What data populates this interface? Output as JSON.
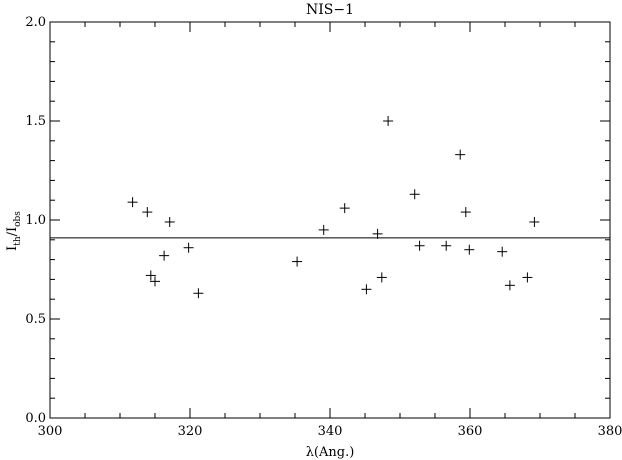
{
  "chart_data": {
    "type": "scatter",
    "title": "NIS−1",
    "xlabel": "λ(Ang.)",
    "ylabel_main": "I",
    "ylabel_sub1": "th",
    "ylabel_mid": "/I",
    "ylabel_sub2": "obs",
    "xlim": [
      300,
      380
    ],
    "ylim": [
      0.0,
      2.0
    ],
    "xticks": [
      300,
      320,
      340,
      360,
      380
    ],
    "xtick_labels": [
      "300",
      "320",
      "340",
      "360",
      "380"
    ],
    "yticks": [
      0.0,
      0.5,
      1.0,
      1.5,
      2.0
    ],
    "ytick_labels": [
      "0.0",
      "0.5",
      "1.0",
      "1.5",
      "2.0"
    ],
    "x_minor_step": 5,
    "y_minor_step": 0.1,
    "marker": "plus",
    "reference_line": {
      "y": 0.91
    },
    "grid": false,
    "points": [
      {
        "x": 311.8,
        "y": 1.09
      },
      {
        "x": 313.9,
        "y": 1.04
      },
      {
        "x": 314.4,
        "y": 0.72
      },
      {
        "x": 315.0,
        "y": 0.69
      },
      {
        "x": 316.3,
        "y": 0.82
      },
      {
        "x": 317.1,
        "y": 0.99
      },
      {
        "x": 319.8,
        "y": 0.86
      },
      {
        "x": 321.2,
        "y": 0.63
      },
      {
        "x": 335.3,
        "y": 0.79
      },
      {
        "x": 339.1,
        "y": 0.95
      },
      {
        "x": 342.1,
        "y": 1.06
      },
      {
        "x": 345.2,
        "y": 0.65
      },
      {
        "x": 346.8,
        "y": 0.93
      },
      {
        "x": 347.4,
        "y": 0.71
      },
      {
        "x": 348.3,
        "y": 1.5
      },
      {
        "x": 352.1,
        "y": 1.13
      },
      {
        "x": 352.8,
        "y": 0.87
      },
      {
        "x": 356.6,
        "y": 0.87
      },
      {
        "x": 358.6,
        "y": 1.33
      },
      {
        "x": 359.4,
        "y": 1.04
      },
      {
        "x": 359.9,
        "y": 0.85
      },
      {
        "x": 364.6,
        "y": 0.84
      },
      {
        "x": 365.7,
        "y": 0.67
      },
      {
        "x": 368.2,
        "y": 0.71
      },
      {
        "x": 369.2,
        "y": 0.99
      }
    ]
  }
}
